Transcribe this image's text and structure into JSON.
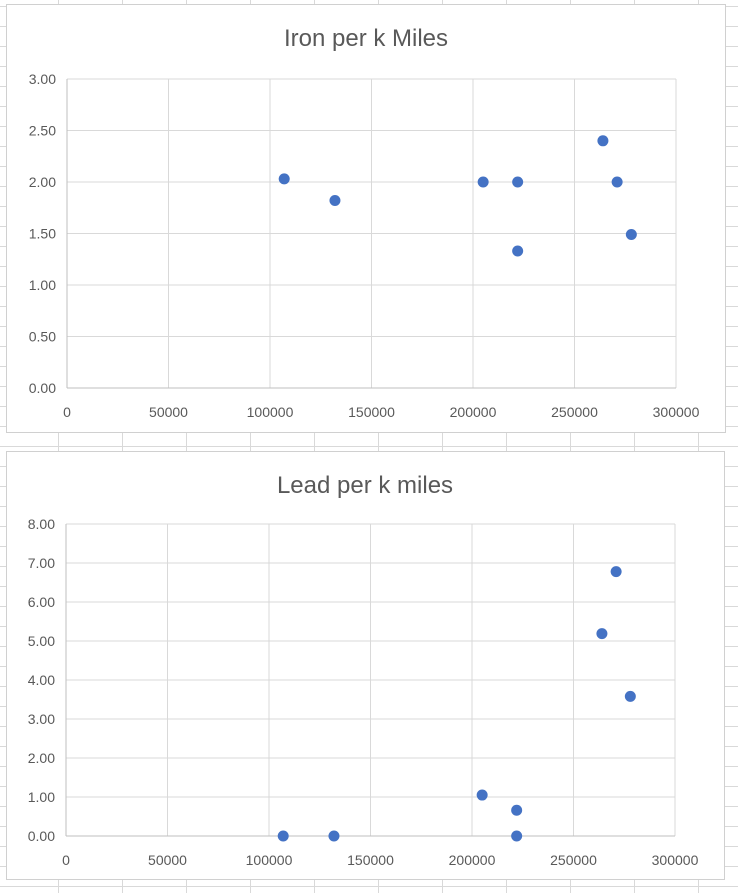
{
  "chart_data": [
    {
      "type": "scatter",
      "title": "Iron per k Miles",
      "xlabel": "",
      "ylabel": "",
      "xlim": [
        0,
        300000
      ],
      "ylim": [
        0,
        3
      ],
      "x_ticks": [
        "0",
        "50000",
        "100000",
        "150000",
        "200000",
        "250000",
        "300000"
      ],
      "y_ticks": [
        "0.00",
        "0.50",
        "1.00",
        "1.50",
        "2.00",
        "2.50",
        "3.00"
      ],
      "grid": true,
      "marker_color": "#4472C4",
      "points": [
        {
          "x": 107000,
          "y": 2.03
        },
        {
          "x": 132000,
          "y": 1.82
        },
        {
          "x": 205000,
          "y": 2.0
        },
        {
          "x": 222000,
          "y": 2.0
        },
        {
          "x": 222000,
          "y": 1.33
        },
        {
          "x": 264000,
          "y": 2.4
        },
        {
          "x": 271000,
          "y": 2.0
        },
        {
          "x": 278000,
          "y": 1.49
        }
      ]
    },
    {
      "type": "scatter",
      "title": "Lead per k miles",
      "xlabel": "",
      "ylabel": "",
      "xlim": [
        0,
        300000
      ],
      "ylim": [
        0,
        8
      ],
      "x_ticks": [
        "0",
        "50000",
        "100000",
        "150000",
        "200000",
        "250000",
        "300000"
      ],
      "y_ticks": [
        "0.00",
        "1.00",
        "2.00",
        "3.00",
        "4.00",
        "5.00",
        "6.00",
        "7.00",
        "8.00"
      ],
      "grid": true,
      "marker_color": "#4472C4",
      "points": [
        {
          "x": 107000,
          "y": 0.0
        },
        {
          "x": 132000,
          "y": 0.0
        },
        {
          "x": 205000,
          "y": 1.05
        },
        {
          "x": 222000,
          "y": 0.66
        },
        {
          "x": 222000,
          "y": 0.0
        },
        {
          "x": 264000,
          "y": 5.19
        },
        {
          "x": 271000,
          "y": 6.78
        },
        {
          "x": 278000,
          "y": 3.58
        }
      ]
    }
  ]
}
